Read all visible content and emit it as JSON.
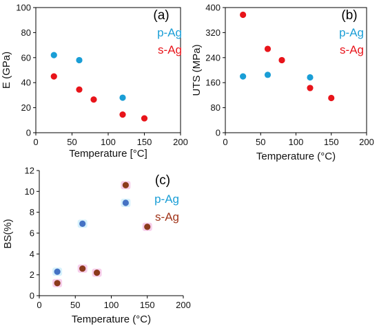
{
  "colors": {
    "p_ag_ab": "#1a9ed6",
    "s_ag_ab": "#e8141a",
    "p_ag_c_marker": "#4472c4",
    "s_ag_c_marker": "#8b3a1c",
    "p_ag_c_legend": "#1a9ed6",
    "s_ag_c_legend": "#a0341a",
    "axis": "#000000"
  },
  "chart_data": [
    {
      "id": "a",
      "type": "scatter",
      "panel_label": "(a)",
      "xlabel": "Temperature [°C]",
      "ylabel": "E (GPa)",
      "xlim": [
        0,
        200
      ],
      "ylim": [
        0,
        100
      ],
      "xticks": [
        "0",
        "50",
        "100",
        "150",
        "200"
      ],
      "yticks": [
        "0",
        "20",
        "40",
        "60",
        "80",
        "100"
      ],
      "grid": false,
      "legend_position": "top-right",
      "series": [
        {
          "name": "p-Ag",
          "color": "#1a9ed6",
          "x": [
            25,
            60,
            120
          ],
          "y": [
            62,
            58,
            28
          ]
        },
        {
          "name": "s-Ag",
          "color": "#e8141a",
          "x": [
            25,
            60,
            80,
            120,
            150
          ],
          "y": [
            45,
            34.5,
            26.5,
            14.5,
            11.5
          ]
        }
      ]
    },
    {
      "id": "b",
      "type": "scatter",
      "panel_label": "(b)",
      "xlabel": "Temperature (°C)",
      "ylabel": "UTS (MPa)",
      "xlim": [
        0,
        200
      ],
      "ylim": [
        0,
        400
      ],
      "xticks": [
        "0",
        "50",
        "100",
        "150",
        "200"
      ],
      "yticks": [
        "0",
        "80",
        "160",
        "240",
        "320",
        "400"
      ],
      "grid": false,
      "legend_position": "top-right",
      "series": [
        {
          "name": "p-Ag",
          "color": "#1a9ed6",
          "x": [
            25,
            60,
            120
          ],
          "y": [
            180,
            185,
            177
          ]
        },
        {
          "name": "s-Ag",
          "color": "#e8141a",
          "x": [
            25,
            60,
            80,
            120,
            150
          ],
          "y": [
            377,
            268,
            232,
            143,
            111
          ]
        }
      ]
    },
    {
      "id": "c",
      "type": "scatter",
      "panel_label": "(c)",
      "xlabel": "Temperature (°C)",
      "ylabel": "BS(%)",
      "xlim": [
        0,
        200
      ],
      "ylim": [
        0,
        12
      ],
      "xticks": [
        "0",
        "50",
        "100",
        "150",
        "200"
      ],
      "yticks": [
        "0",
        "2",
        "4",
        "6",
        "8",
        "10",
        "12"
      ],
      "grid": false,
      "legend_position": "top-right",
      "series": [
        {
          "name": "p-Ag",
          "color": "#4472c4",
          "legend_color": "#1a9ed6",
          "x": [
            25,
            60,
            120
          ],
          "y": [
            2.3,
            6.9,
            8.9
          ]
        },
        {
          "name": "s-Ag",
          "color": "#8b3a1c",
          "legend_color": "#a0341a",
          "x": [
            25,
            60,
            80,
            120,
            150
          ],
          "y": [
            1.2,
            2.6,
            2.2,
            10.6,
            6.6
          ]
        }
      ]
    }
  ]
}
